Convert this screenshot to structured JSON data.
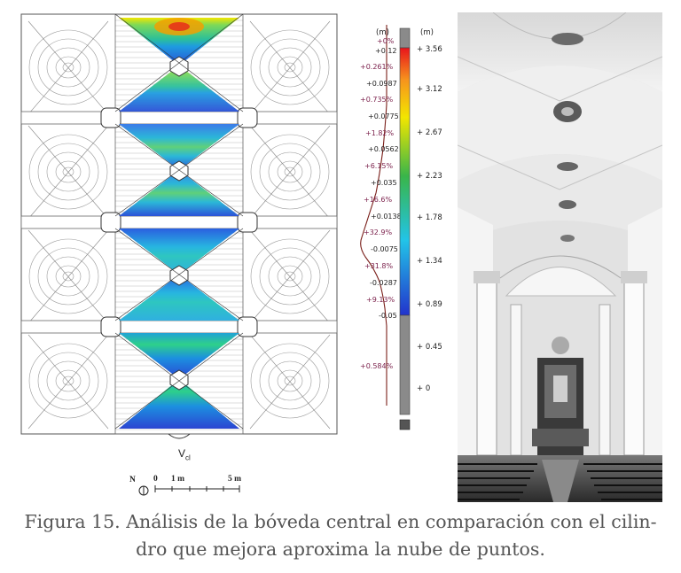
{
  "figure": {
    "caption_line1": "Figura 15. Análisis de la bóveda central en comparación con el cilin-",
    "caption_line2": "dro que mejora aproxima la nube de puntos."
  },
  "plan": {
    "vault_label": "V",
    "vault_label_sub": "cl",
    "north_label": "N",
    "scale_labels": [
      "0",
      "1 m",
      "5 m"
    ]
  },
  "histogram": {
    "unit": "(m)",
    "labels": [
      "+0%",
      "+0.12",
      "+0.261%",
      "+0.0987",
      "+0.735%",
      "+0.0775",
      "+1.82%",
      "+0.0562",
      "+6.15%",
      "+0.035",
      "+16.6%",
      "+0.0138",
      "+32.9%",
      "-0.0075",
      "+31.8%",
      "-0.0287",
      "+9.13%",
      "-0.05",
      "+0.584%"
    ]
  },
  "colorbar": {
    "unit": "(m)",
    "ticks": [
      "+ 3.56",
      "+ 3.12",
      "+ 2.67",
      "+ 2.23",
      "+ 1.78",
      "+ 1.34",
      "+ 0.89",
      "+ 0.45",
      "+ 0"
    ],
    "colors": {
      "red": "#e8141c",
      "orange": "#f7941d",
      "yellow": "#f2e600",
      "green": "#39b54a",
      "cyan": "#22c4e8",
      "blue": "#2233cc",
      "grey": "#8a8a8a"
    }
  }
}
